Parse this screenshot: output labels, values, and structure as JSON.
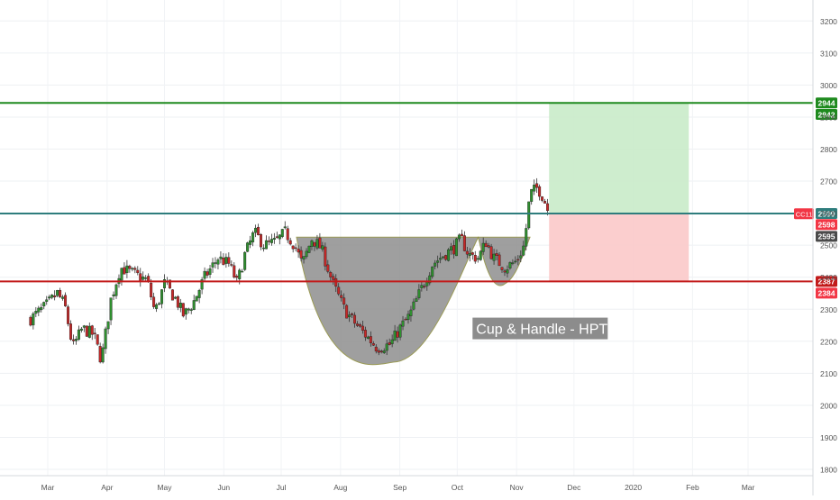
{
  "chart_data": {
    "type": "candlestick",
    "title": "",
    "symbol_tag": "CC11",
    "x_ticks": [
      "Mar",
      "Apr",
      "May",
      "Jun",
      "Jul",
      "Aug",
      "Sep",
      "Oct",
      "Nov",
      "Dec",
      "2020",
      "Feb",
      "Mar"
    ],
    "y_ticks": [
      1800,
      1900,
      2000,
      2100,
      2200,
      2300,
      2400,
      2500,
      2600,
      2700,
      2800,
      2900,
      3000,
      3100,
      3200
    ],
    "ylim": [
      1800,
      3240
    ],
    "grid": true,
    "horizontal_levels": [
      {
        "name": "target",
        "value": 2944,
        "color": "#1e8a1e"
      },
      {
        "name": "breakout",
        "value": 2599,
        "color": "#2e7d7d"
      },
      {
        "name": "stop",
        "value": 2387,
        "color": "#c21a1a"
      }
    ],
    "price_labels": [
      {
        "text": "2944",
        "value": 2944,
        "bg": "#1e8a1e"
      },
      {
        "text": "2942",
        "value": 2942,
        "bg": "#1e8a1e"
      },
      {
        "text": "2599",
        "value": 2599,
        "bg": "#2e7d7d"
      },
      {
        "text": "2598",
        "value": 2598,
        "bg": "#f23645"
      },
      {
        "text": "2595",
        "value": 2595,
        "bg": "#4a4a4a"
      },
      {
        "text": "2387",
        "value": 2387,
        "bg": "#c21a1a"
      },
      {
        "text": "2384",
        "value": 2384,
        "bg": "#f23645"
      }
    ],
    "position_box": {
      "entry": 2599,
      "target": 2944,
      "stop": 2387,
      "start": "Nov 18",
      "end": "Jan 30"
    },
    "pattern_annotation": {
      "label": "Cup & Handle - HPT",
      "rim": 2525,
      "cup_bottom": 2135,
      "handle_bottom": 2380
    },
    "price_path": [
      [
        "Feb 20",
        2270
      ],
      [
        "Feb 28",
        2310
      ],
      [
        "Mar 6",
        2350
      ],
      [
        "Mar 10",
        2310
      ],
      [
        "Mar 14",
        2180
      ],
      [
        "Mar 19",
        2240
      ],
      [
        "Mar 25",
        2220
      ],
      [
        "Mar 29",
        2140
      ],
      [
        "Apr 3",
        2330
      ],
      [
        "Apr 8",
        2430
      ],
      [
        "Apr 15",
        2410
      ],
      [
        "Apr 22",
        2390
      ],
      [
        "Apr 26",
        2290
      ],
      [
        "May 1",
        2380
      ],
      [
        "May 7",
        2330
      ],
      [
        "May 11",
        2280
      ],
      [
        "May 16",
        2320
      ],
      [
        "May 22",
        2400
      ],
      [
        "May 29",
        2460
      ],
      [
        "Jun 4",
        2440
      ],
      [
        "Jun 8",
        2380
      ],
      [
        "Jun 12",
        2470
      ],
      [
        "Jun 17",
        2540
      ],
      [
        "Jun 22",
        2500
      ],
      [
        "Jun 28",
        2510
      ],
      [
        "Jul 3",
        2540
      ],
      [
        "Jul 8",
        2500
      ],
      [
        "Jul 12",
        2440
      ],
      [
        "Jul 17",
        2520
      ],
      [
        "Jul 22",
        2490
      ],
      [
        "Jul 28",
        2380
      ],
      [
        "Aug 3",
        2300
      ],
      [
        "Aug 8",
        2260
      ],
      [
        "Aug 14",
        2220
      ],
      [
        "Aug 20",
        2180
      ],
      [
        "Aug 27",
        2190
      ],
      [
        "Sep 1",
        2240
      ],
      [
        "Sep 6",
        2280
      ],
      [
        "Sep 12",
        2360
      ],
      [
        "Sep 18",
        2440
      ],
      [
        "Sep 24",
        2470
      ],
      [
        "Sep 29",
        2490
      ],
      [
        "Oct 3",
        2520
      ],
      [
        "Oct 7",
        2470
      ],
      [
        "Oct 12",
        2460
      ],
      [
        "Oct 16",
        2510
      ],
      [
        "Oct 20",
        2460
      ],
      [
        "Oct 26",
        2430
      ],
      [
        "Nov 1",
        2450
      ],
      [
        "Nov 5",
        2500
      ],
      [
        "Nov 8",
        2660
      ],
      [
        "Nov 12",
        2680
      ],
      [
        "Nov 15",
        2650
      ],
      [
        "Nov 18",
        2598
      ]
    ]
  }
}
